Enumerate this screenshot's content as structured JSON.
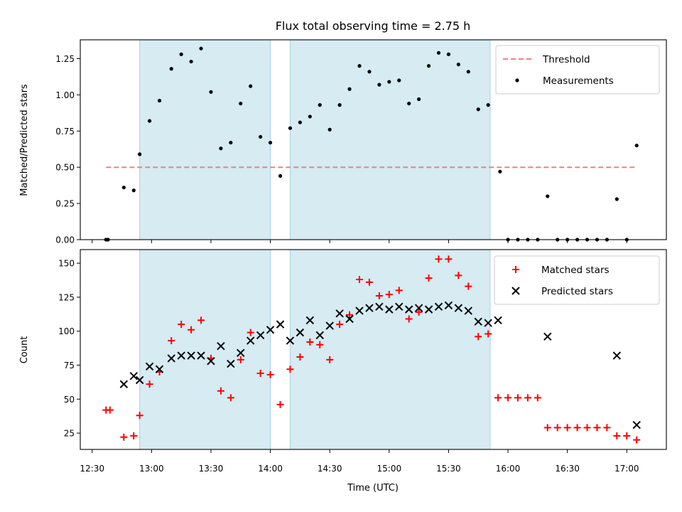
{
  "figure": {
    "title": "Flux total observing time = 2.75 h"
  },
  "chart_data": [
    {
      "type": "scatter",
      "panel": "top",
      "ylabel": "Matched/Predicted stars",
      "xlabel": "",
      "xlim": [
        "12:24",
        "17:20"
      ],
      "ylim": [
        0,
        1.38
      ],
      "yticks": [
        0,
        0.25,
        0.5,
        0.75,
        1.0,
        1.25
      ],
      "ytick_labels": [
        "0.00",
        "0.25",
        "0.50",
        "0.75",
        "1.00",
        "1.25"
      ],
      "shaded_intervals": [
        [
          "12:54",
          "14:00"
        ],
        [
          "14:10",
          "15:51"
        ]
      ],
      "threshold": {
        "name": "Threshold",
        "value": 0.5,
        "x_range": [
          "12:37",
          "17:05"
        ],
        "color": "#f08080",
        "style": "dashed"
      },
      "series": [
        {
          "name": "Measurements",
          "marker": "dot",
          "color": "#000000",
          "x": [
            "12:37",
            "12:38",
            "12:46",
            "12:51",
            "12:54",
            "12:59",
            "13:04",
            "13:10",
            "13:15",
            "13:20",
            "13:25",
            "13:30",
            "13:35",
            "13:40",
            "13:45",
            "13:50",
            "13:55",
            "14:00",
            "14:05",
            "14:10",
            "14:15",
            "14:20",
            "14:25",
            "14:30",
            "14:35",
            "14:40",
            "14:45",
            "14:50",
            "14:55",
            "15:00",
            "15:05",
            "15:10",
            "15:15",
            "15:20",
            "15:25",
            "15:30",
            "15:35",
            "15:40",
            "15:45",
            "15:50",
            "15:56",
            "16:00",
            "16:05",
            "16:10",
            "16:15",
            "16:20",
            "16:25",
            "16:30",
            "16:35",
            "16:40",
            "16:45",
            "16:50",
            "16:55",
            "17:00",
            "17:05"
          ],
          "y": [
            0,
            0,
            0.36,
            0.34,
            0.59,
            0.82,
            0.96,
            1.18,
            1.28,
            1.23,
            1.32,
            1.02,
            0.63,
            0.67,
            0.94,
            1.06,
            0.71,
            0.67,
            0.44,
            0.77,
            0.81,
            0.85,
            0.93,
            0.76,
            0.93,
            1.04,
            1.2,
            1.16,
            1.07,
            1.09,
            1.1,
            0.94,
            0.97,
            1.2,
            1.29,
            1.28,
            1.21,
            1.16,
            0.9,
            0.93,
            0.47,
            0,
            0,
            0,
            0,
            0.3,
            0,
            0,
            0,
            0,
            0,
            0,
            0.28,
            0,
            0.65
          ]
        }
      ],
      "legend": {
        "placement": "upper right",
        "entries": [
          "Threshold",
          "Measurements"
        ]
      }
    },
    {
      "type": "scatter",
      "panel": "bottom",
      "ylabel": "Count",
      "xlabel": "Time (UTC)",
      "xlim": [
        "12:24",
        "17:20"
      ],
      "ylim": [
        13,
        160
      ],
      "yticks": [
        25,
        50,
        75,
        100,
        125,
        150
      ],
      "ytick_labels": [
        "25",
        "50",
        "75",
        "100",
        "125",
        "150"
      ],
      "xticks": [
        "12:30",
        "13:00",
        "13:30",
        "14:00",
        "14:30",
        "15:00",
        "15:30",
        "16:00",
        "16:30",
        "17:00"
      ],
      "shaded_intervals": [
        [
          "12:54",
          "14:00"
        ],
        [
          "14:10",
          "15:51"
        ]
      ],
      "series": [
        {
          "name": "Matched stars",
          "marker": "plus",
          "color": "#ff0000",
          "x": [
            "12:37",
            "12:39",
            "12:46",
            "12:51",
            "12:54",
            "12:59",
            "13:04",
            "13:10",
            "13:15",
            "13:20",
            "13:25",
            "13:30",
            "13:35",
            "13:40",
            "13:45",
            "13:50",
            "13:55",
            "14:00",
            "14:05",
            "14:10",
            "14:15",
            "14:20",
            "14:25",
            "14:30",
            "14:35",
            "14:40",
            "14:45",
            "14:50",
            "14:55",
            "15:00",
            "15:05",
            "15:10",
            "15:15",
            "15:20",
            "15:25",
            "15:30",
            "15:35",
            "15:40",
            "15:45",
            "15:50",
            "15:55",
            "16:00",
            "16:05",
            "16:10",
            "16:15",
            "16:20",
            "16:25",
            "16:30",
            "16:35",
            "16:40",
            "16:45",
            "16:50",
            "16:55",
            "17:00",
            "17:05"
          ],
          "y": [
            42,
            42,
            22,
            23,
            38,
            61,
            70,
            93,
            105,
            101,
            108,
            80,
            56,
            51,
            79,
            99,
            69,
            68,
            46,
            72,
            81,
            92,
            90,
            79,
            105,
            112,
            138,
            136,
            126,
            127,
            130,
            109,
            114,
            139,
            153,
            153,
            141,
            133,
            96,
            98,
            51,
            51,
            51,
            51,
            51,
            29,
            29,
            29,
            29,
            29,
            29,
            29,
            23,
            23,
            20
          ]
        },
        {
          "name": "Predicted stars",
          "marker": "x",
          "color": "#000000",
          "x": [
            "12:46",
            "12:51",
            "12:54",
            "12:59",
            "13:04",
            "13:10",
            "13:15",
            "13:20",
            "13:25",
            "13:30",
            "13:35",
            "13:40",
            "13:45",
            "13:50",
            "13:55",
            "14:00",
            "14:05",
            "14:10",
            "14:15",
            "14:20",
            "14:25",
            "14:30",
            "14:35",
            "14:40",
            "14:45",
            "14:50",
            "14:55",
            "15:00",
            "15:05",
            "15:10",
            "15:15",
            "15:20",
            "15:25",
            "15:30",
            "15:35",
            "15:40",
            "15:45",
            "15:50",
            "15:55",
            "16:20",
            "16:55",
            "17:05"
          ],
          "y": [
            61,
            67,
            64,
            74,
            72,
            80,
            82,
            82,
            82,
            78,
            89,
            76,
            84,
            93,
            97,
            101,
            105,
            93,
            99,
            108,
            97,
            104,
            113,
            109,
            115,
            117,
            118,
            116,
            118,
            116,
            117,
            116,
            118,
            119,
            117,
            115,
            107,
            106,
            108,
            96,
            82,
            31
          ]
        }
      ],
      "legend": {
        "placement": "upper right",
        "entries": [
          "Matched stars",
          "Predicted stars"
        ]
      }
    }
  ]
}
